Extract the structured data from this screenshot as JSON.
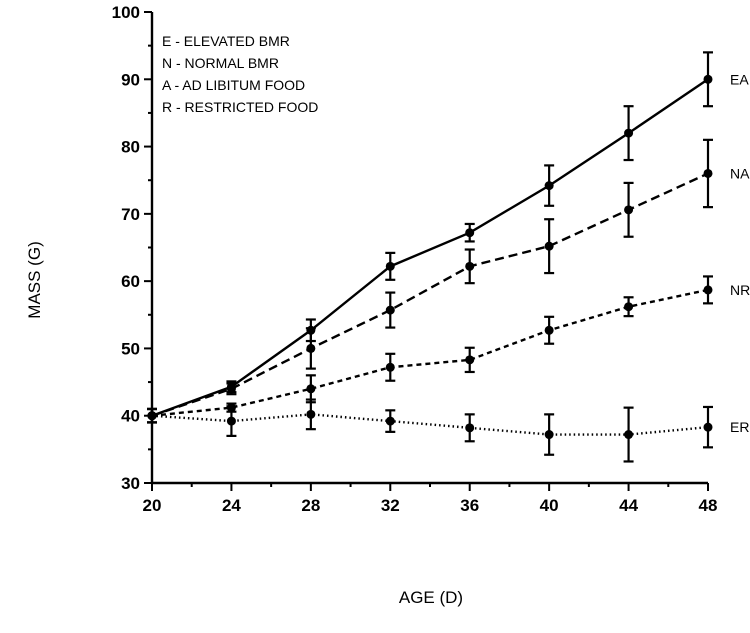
{
  "chart_data": {
    "type": "line",
    "xlabel": "AGE (D)",
    "ylabel": "MASS (G)",
    "xlim": [
      20,
      48
    ],
    "ylim": [
      30,
      100
    ],
    "xticks": [
      20,
      24,
      28,
      32,
      36,
      40,
      44,
      48
    ],
    "yticks": [
      30,
      40,
      50,
      60,
      70,
      80,
      90,
      100
    ],
    "grid": false,
    "key": [
      "E - ELEVATED BMR",
      "N - NORMAL BMR",
      "A - AD LIBITUM FOOD",
      "R - RESTRICTED FOOD"
    ],
    "x": [
      20,
      24,
      28,
      32,
      36,
      40,
      44,
      48
    ],
    "series": [
      {
        "name": "EA",
        "style": "solid",
        "values": [
          40,
          44.3,
          52.7,
          62.2,
          67.2,
          74.2,
          82.0,
          90.0
        ],
        "errors": [
          1.0,
          0.8,
          1.6,
          2.0,
          1.3,
          3.0,
          4.0,
          4.0
        ]
      },
      {
        "name": "NA",
        "style": "dashed",
        "values": [
          40,
          44.0,
          50.0,
          55.7,
          62.2,
          65.2,
          70.6,
          76.0
        ],
        "errors": [
          1.0,
          0.8,
          3.0,
          2.6,
          2.5,
          4.0,
          4.0,
          5.0
        ]
      },
      {
        "name": "NR",
        "style": "short-dashed",
        "values": [
          40,
          41.2,
          44.0,
          47.2,
          48.3,
          52.7,
          56.2,
          58.7
        ],
        "errors": [
          1.0,
          0.6,
          2.0,
          2.0,
          1.8,
          2.0,
          1.4,
          2.0
        ]
      },
      {
        "name": "ER",
        "style": "dotted",
        "values": [
          40,
          39.2,
          40.2,
          39.2,
          38.2,
          37.2,
          37.2,
          38.3
        ],
        "errors": [
          1.0,
          2.2,
          2.2,
          1.6,
          2.0,
          3.0,
          4.0,
          3.0
        ]
      }
    ]
  }
}
